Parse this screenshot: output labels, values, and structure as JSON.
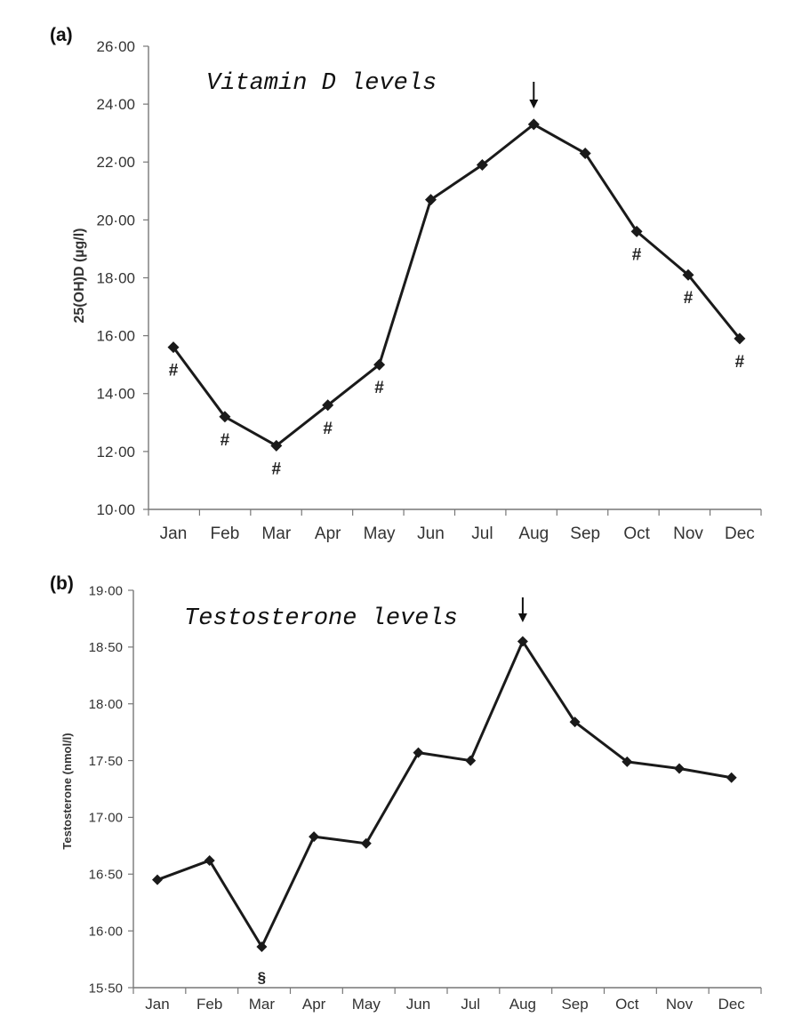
{
  "chart_data": [
    {
      "type": "line",
      "panel": "(a)",
      "title": "Vitamin D levels",
      "xlabel": "",
      "ylabel": "25(OH)D (µg/l)",
      "ylim": [
        10,
        26
      ],
      "y_ticks": [
        "10·00",
        "12·00",
        "14·00",
        "16·00",
        "18·00",
        "20·00",
        "22·00",
        "24·00",
        "26·00"
      ],
      "categories": [
        "Jan",
        "Feb",
        "Mar",
        "Apr",
        "May",
        "Jun",
        "Jul",
        "Aug",
        "Sep",
        "Oct",
        "Nov",
        "Dec"
      ],
      "series": [
        {
          "values": [
            15.6,
            13.2,
            12.2,
            13.6,
            15.0,
            20.7,
            21.9,
            23.3,
            22.3,
            19.6,
            18.1,
            15.9
          ]
        }
      ],
      "annotations": [
        {
          "category": "Jan",
          "text": "#"
        },
        {
          "category": "Feb",
          "text": "#"
        },
        {
          "category": "Mar",
          "text": "#"
        },
        {
          "category": "Apr",
          "text": "#"
        },
        {
          "category": "May",
          "text": "#"
        },
        {
          "category": "Oct",
          "text": "#"
        },
        {
          "category": "Nov",
          "text": "#"
        },
        {
          "category": "Dec",
          "text": "#"
        }
      ],
      "peak_arrow": "Aug",
      "grid": false,
      "line_color": "#1a1a1a"
    },
    {
      "type": "line",
      "panel": "(b)",
      "title": "Testosterone levels",
      "xlabel": "",
      "ylabel": "Testosterone (nmol/l)",
      "ylim": [
        15.5,
        19.0
      ],
      "y_ticks": [
        "15·50",
        "16·00",
        "16·50",
        "17·00",
        "17·50",
        "18·00",
        "18·50",
        "19·00"
      ],
      "categories": [
        "Jan",
        "Feb",
        "Mar",
        "Apr",
        "May",
        "Jun",
        "Jul",
        "Aug",
        "Sep",
        "Oct",
        "Nov",
        "Dec"
      ],
      "series": [
        {
          "values": [
            16.45,
            16.62,
            15.86,
            16.83,
            16.77,
            17.57,
            17.5,
            18.55,
            17.84,
            17.49,
            17.43,
            17.35
          ]
        }
      ],
      "annotations": [
        {
          "category": "Mar",
          "text": "§"
        }
      ],
      "peak_arrow": "Aug",
      "grid": false,
      "line_color": "#1a1a1a"
    }
  ]
}
